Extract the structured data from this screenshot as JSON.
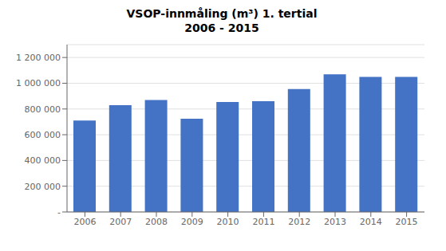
{
  "chart_data": {
    "type": "bar",
    "title": "VSOP-innmåling (m³) 1. tertial\n2006 - 2015",
    "categories": [
      "2006",
      "2007",
      "2008",
      "2009",
      "2010",
      "2011",
      "2012",
      "2013",
      "2014",
      "2015"
    ],
    "values": [
      710000,
      830000,
      870000,
      725000,
      855000,
      860000,
      955000,
      1070000,
      1050000,
      1050000
    ],
    "color": "#4472C4",
    "ylim": [
      0,
      1300000
    ],
    "yticks": [
      {
        "value": 0,
        "label": "-"
      },
      {
        "value": 200000,
        "label": "200 000"
      },
      {
        "value": 400000,
        "label": "400 000"
      },
      {
        "value": 600000,
        "label": "600 000"
      },
      {
        "value": 800000,
        "label": "800 000"
      },
      {
        "value": 1000000,
        "label": "1 000 000"
      },
      {
        "value": 1200000,
        "label": "1 200 000"
      }
    ],
    "grid": true
  }
}
